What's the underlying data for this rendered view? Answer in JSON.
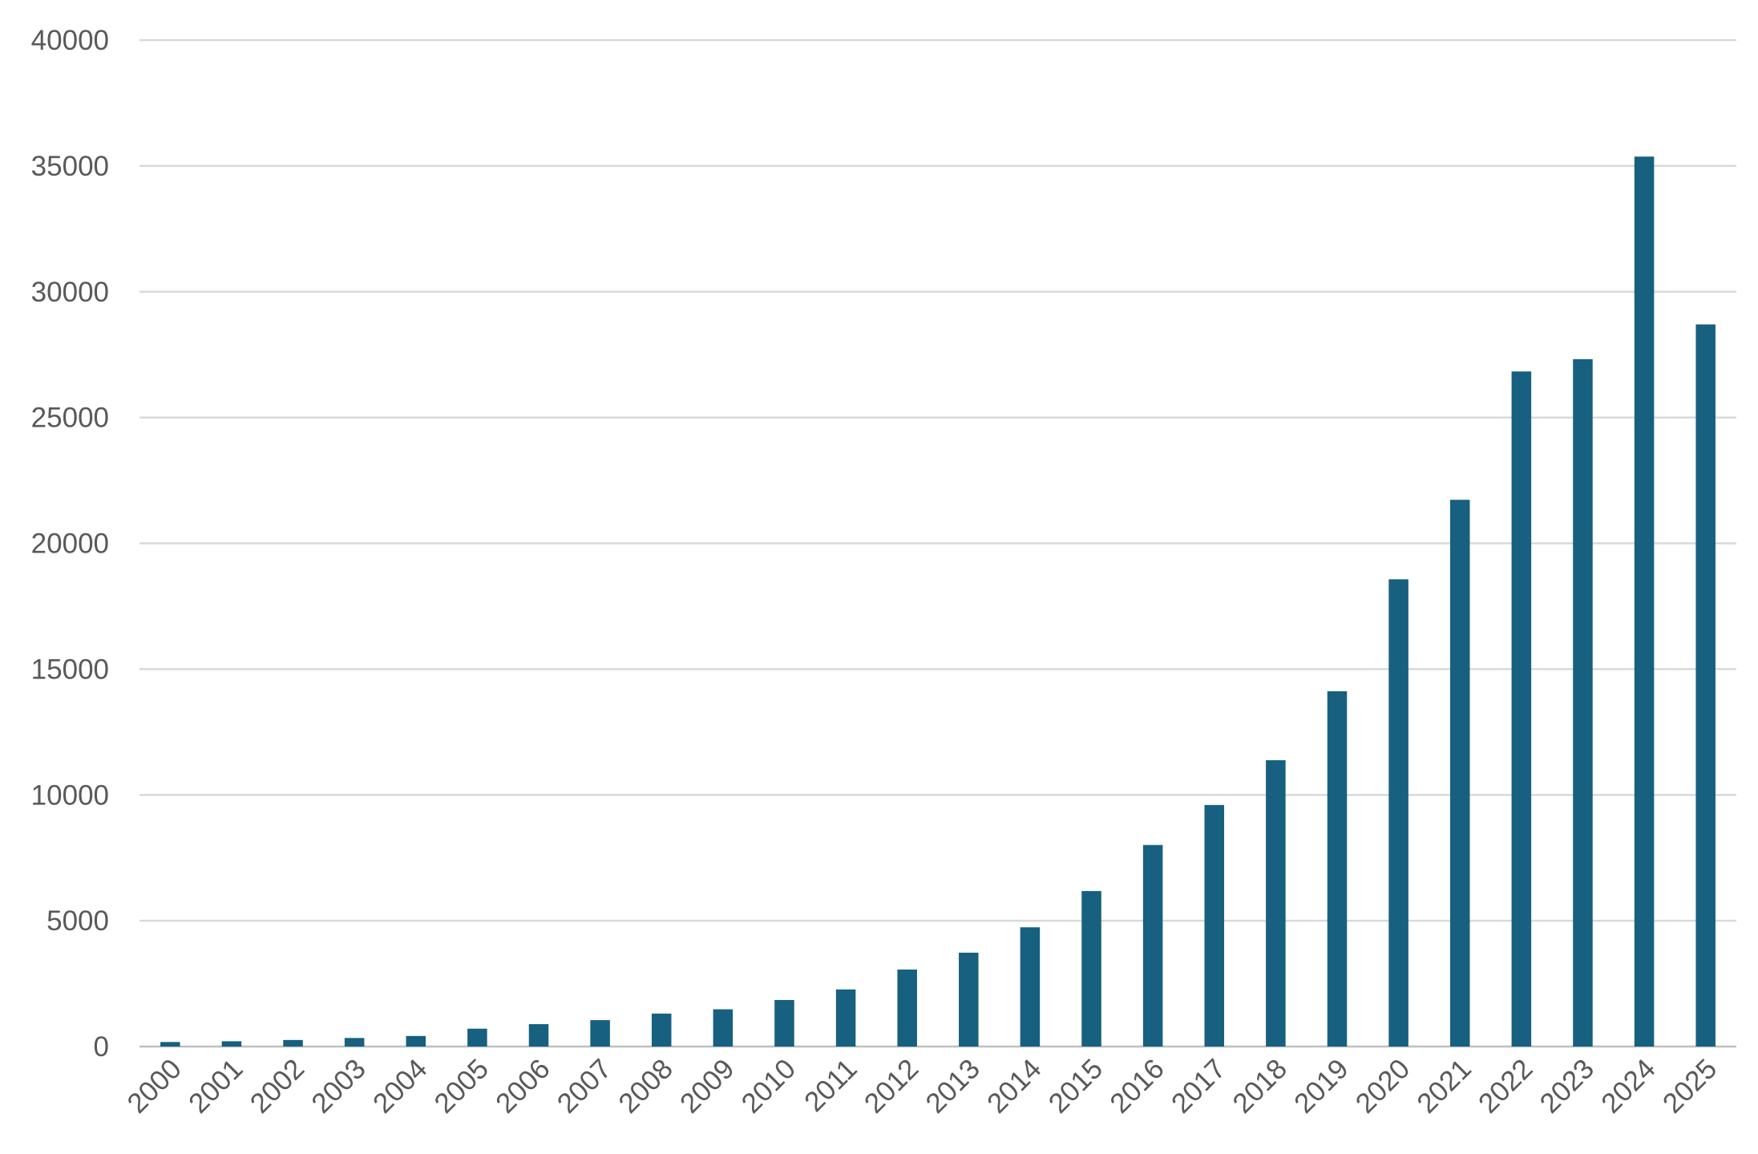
{
  "chart_data": {
    "type": "bar",
    "title": "",
    "xlabel": "",
    "ylabel": "",
    "categories": [
      "2000",
      "2001",
      "2002",
      "2003",
      "2004",
      "2005",
      "2006",
      "2007",
      "2008",
      "2009",
      "2010",
      "2011",
      "2012",
      "2013",
      "2014",
      "2015",
      "2016",
      "2017",
      "2018",
      "2019",
      "2020",
      "2021",
      "2022",
      "2023",
      "2024",
      "2025"
    ],
    "values": [
      180,
      210,
      260,
      340,
      420,
      710,
      890,
      1050,
      1310,
      1480,
      1850,
      2270,
      3060,
      3730,
      4740,
      6180,
      8010,
      9600,
      11380,
      14120,
      18570,
      21730,
      26830,
      27320,
      35370,
      28700
    ],
    "ylim": [
      0,
      40000
    ],
    "yticks": [
      0,
      5000,
      10000,
      15000,
      20000,
      25000,
      30000,
      35000,
      40000
    ],
    "grid": "horizontal",
    "legend": "none",
    "bar_color": "#17607f"
  }
}
